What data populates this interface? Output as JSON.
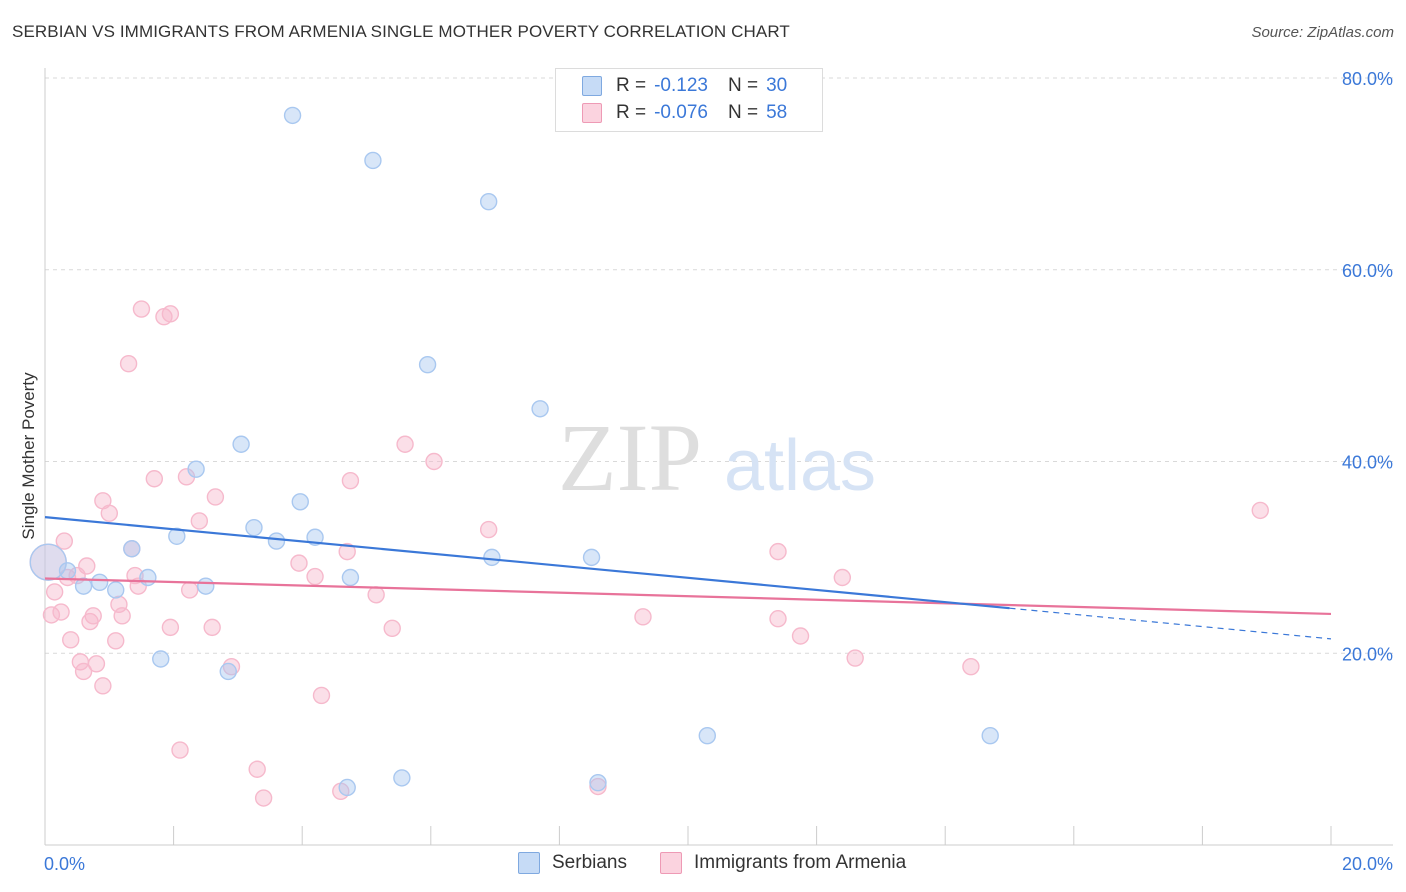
{
  "title": "SERBIAN VS IMMIGRANTS FROM ARMENIA SINGLE MOTHER POVERTY CORRELATION CHART",
  "source": "Source: ZipAtlas.com",
  "watermark": {
    "zip": "ZIP",
    "atlas": "atlas"
  },
  "legend": {
    "rows": [
      {
        "r_label": "R =",
        "r_value": "-0.123",
        "n_label": "N =",
        "n_value": "30",
        "color": "#a9c8f0"
      },
      {
        "r_label": "R =",
        "r_value": "-0.076",
        "n_label": "N =",
        "n_value": "58",
        "color": "#f6b9cc"
      }
    ]
  },
  "bottom_legend": [
    {
      "label": "Serbians",
      "color": "#a9c8f0"
    },
    {
      "label": "Immigrants from Armenia",
      "color": "#f6b9cc"
    }
  ],
  "chart_data": {
    "type": "scatter",
    "title": "SERBIAN VS IMMIGRANTS FROM ARMENIA SINGLE MOTHER POVERTY CORRELATION CHART",
    "xlabel": "",
    "ylabel": "Single Mother Poverty",
    "xlim": [
      0,
      20
    ],
    "ylim": [
      0,
      80
    ],
    "x_tick_labels": [
      "0.0%",
      "20.0%"
    ],
    "y_ticks": [
      20,
      40,
      60,
      80
    ],
    "y_tick_labels": [
      "20.0%",
      "40.0%",
      "60.0%",
      "80.0%"
    ],
    "grid": true,
    "series": [
      {
        "name": "Serbians",
        "color": "#3b78d8",
        "fill": "#a9c8f0",
        "trend": {
          "x0": 0,
          "y0": 34.2,
          "x1": 15.0,
          "y1": 24.7,
          "dash_to_x": 20,
          "dash_to_y": 21.5
        },
        "points": [
          [
            0.05,
            29.5
          ],
          [
            0.35,
            28.6
          ],
          [
            0.6,
            27.0
          ],
          [
            0.85,
            27.4
          ],
          [
            1.1,
            26.6
          ],
          [
            1.35,
            30.9
          ],
          [
            1.6,
            27.9
          ],
          [
            1.8,
            19.4
          ],
          [
            2.05,
            32.2
          ],
          [
            2.35,
            39.2
          ],
          [
            2.5,
            27.0
          ],
          [
            2.85,
            18.1
          ],
          [
            3.05,
            41.8
          ],
          [
            3.25,
            33.1
          ],
          [
            3.6,
            31.7
          ],
          [
            3.85,
            76.1
          ],
          [
            3.97,
            35.8
          ],
          [
            4.2,
            32.1
          ],
          [
            4.7,
            6.0
          ],
          [
            4.75,
            27.9
          ],
          [
            5.1,
            71.4
          ],
          [
            5.55,
            7.0
          ],
          [
            5.95,
            50.1
          ],
          [
            6.9,
            67.1
          ],
          [
            6.95,
            30.0
          ],
          [
            7.7,
            45.5
          ],
          [
            8.5,
            30.0
          ],
          [
            8.6,
            6.5
          ],
          [
            10.3,
            11.4
          ],
          [
            14.7,
            11.4
          ]
        ]
      },
      {
        "name": "Immigrants from Armenia",
        "color": "#e8739a",
        "fill": "#f6b9cc",
        "trend": {
          "x0": 0,
          "y0": 27.8,
          "x1": 20,
          "y1": 24.1
        },
        "points": [
          [
            0.1,
            24.0
          ],
          [
            0.15,
            26.4
          ],
          [
            0.25,
            24.3
          ],
          [
            0.3,
            31.7
          ],
          [
            0.35,
            27.9
          ],
          [
            0.4,
            21.4
          ],
          [
            0.5,
            28.1
          ],
          [
            0.55,
            19.1
          ],
          [
            0.6,
            18.1
          ],
          [
            0.65,
            29.1
          ],
          [
            0.7,
            23.3
          ],
          [
            0.75,
            23.9
          ],
          [
            0.8,
            18.9
          ],
          [
            0.9,
            16.6
          ],
          [
            0.9,
            35.9
          ],
          [
            1.0,
            34.6
          ],
          [
            1.1,
            21.3
          ],
          [
            1.15,
            25.1
          ],
          [
            1.2,
            23.9
          ],
          [
            1.3,
            50.2
          ],
          [
            1.35,
            30.9
          ],
          [
            1.4,
            28.1
          ],
          [
            1.45,
            27.0
          ],
          [
            1.5,
            55.9
          ],
          [
            1.7,
            38.2
          ],
          [
            1.85,
            55.1
          ],
          [
            1.95,
            22.7
          ],
          [
            1.95,
            55.4
          ],
          [
            2.1,
            9.9
          ],
          [
            2.2,
            38.4
          ],
          [
            2.25,
            26.6
          ],
          [
            2.4,
            33.8
          ],
          [
            2.6,
            22.7
          ],
          [
            2.65,
            36.3
          ],
          [
            2.9,
            18.6
          ],
          [
            3.3,
            7.9
          ],
          [
            3.4,
            4.9
          ],
          [
            3.95,
            29.4
          ],
          [
            4.2,
            28.0
          ],
          [
            4.3,
            15.6
          ],
          [
            4.6,
            5.6
          ],
          [
            4.7,
            30.6
          ],
          [
            4.75,
            38.0
          ],
          [
            5.15,
            26.1
          ],
          [
            5.4,
            22.6
          ],
          [
            5.6,
            41.8
          ],
          [
            6.05,
            40.0
          ],
          [
            6.9,
            32.9
          ],
          [
            8.6,
            6.1
          ],
          [
            9.3,
            23.8
          ],
          [
            11.4,
            30.6
          ],
          [
            11.4,
            23.6
          ],
          [
            11.75,
            21.8
          ],
          [
            12.4,
            27.9
          ],
          [
            12.6,
            19.5
          ],
          [
            14.4,
            18.6
          ],
          [
            18.9,
            34.9
          ],
          [
            0.05,
            29.5
          ]
        ]
      }
    ]
  }
}
